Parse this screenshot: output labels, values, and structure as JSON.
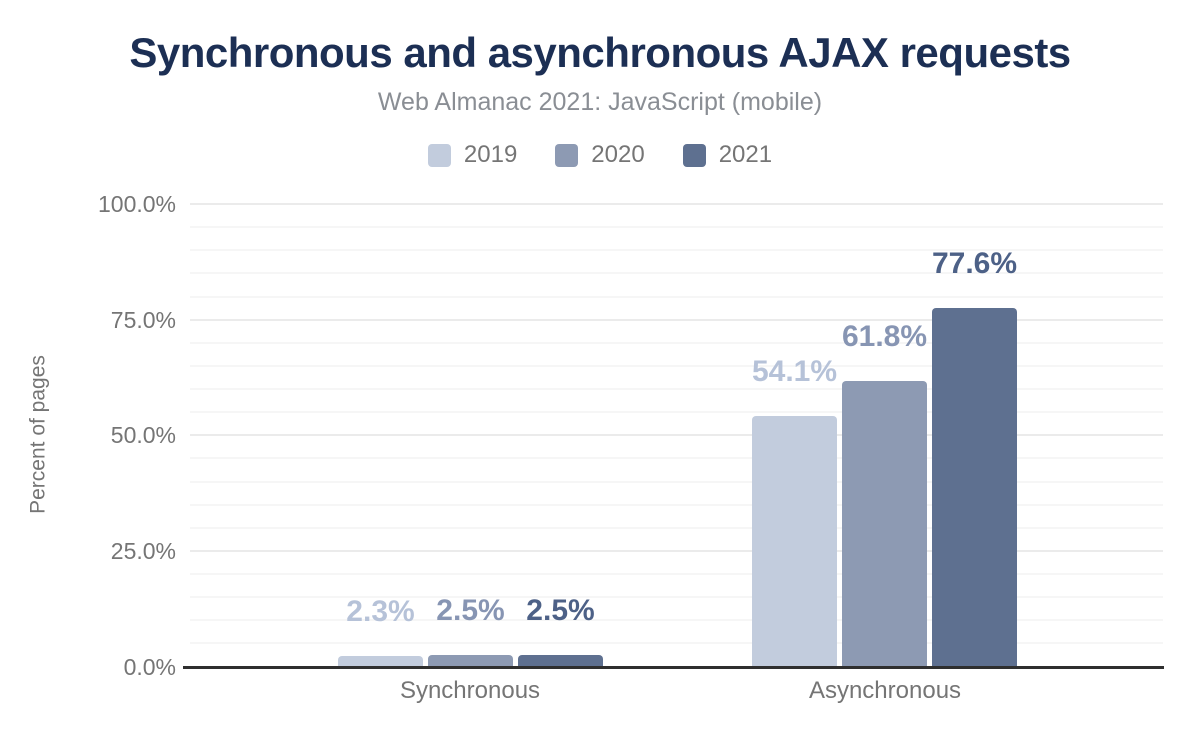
{
  "header": {
    "title": "Synchronous and asynchronous AJAX requests",
    "subtitle": "Web Almanac 2021: JavaScript (mobile)"
  },
  "chart_data": {
    "type": "bar",
    "title": "Synchronous and asynchronous AJAX requests",
    "subtitle": "Web Almanac 2021: JavaScript (mobile)",
    "categories": [
      "Synchronous",
      "Asynchronous"
    ],
    "series": [
      {
        "name": "2019",
        "values": [
          2.3,
          54.1
        ],
        "labels": [
          "2.3%",
          "54.1%"
        ],
        "color": "#c2ccdd",
        "label_color": "#b6c2d8"
      },
      {
        "name": "2020",
        "values": [
          2.5,
          61.8
        ],
        "labels": [
          "2.5%",
          "61.8%"
        ],
        "color": "#8d9ab3",
        "label_color": "#8795b3"
      },
      {
        "name": "2021",
        "values": [
          2.5,
          77.6
        ],
        "labels": [
          "2.5%",
          "77.6%"
        ],
        "color": "#5e7090",
        "label_color": "#4d6187"
      }
    ],
    "xlabel": "",
    "ylabel": "Percent of pages",
    "ylim": [
      0,
      100
    ],
    "yticks": [
      {
        "value": 0,
        "label": "0.0%"
      },
      {
        "value": 25,
        "label": "25.0%"
      },
      {
        "value": 50,
        "label": "50.0%"
      },
      {
        "value": 75,
        "label": "75.0%"
      },
      {
        "value": 100,
        "label": "100.0%"
      }
    ],
    "grid": "horizontal minor lines every 5%, major lines every 25%",
    "legend_position": "top-center"
  },
  "style": {
    "title_color": "#1c2f54",
    "subtitle_color": "#8a8e94",
    "axis_text_color": "#757575",
    "axis_line_color": "#2f2f2f"
  }
}
